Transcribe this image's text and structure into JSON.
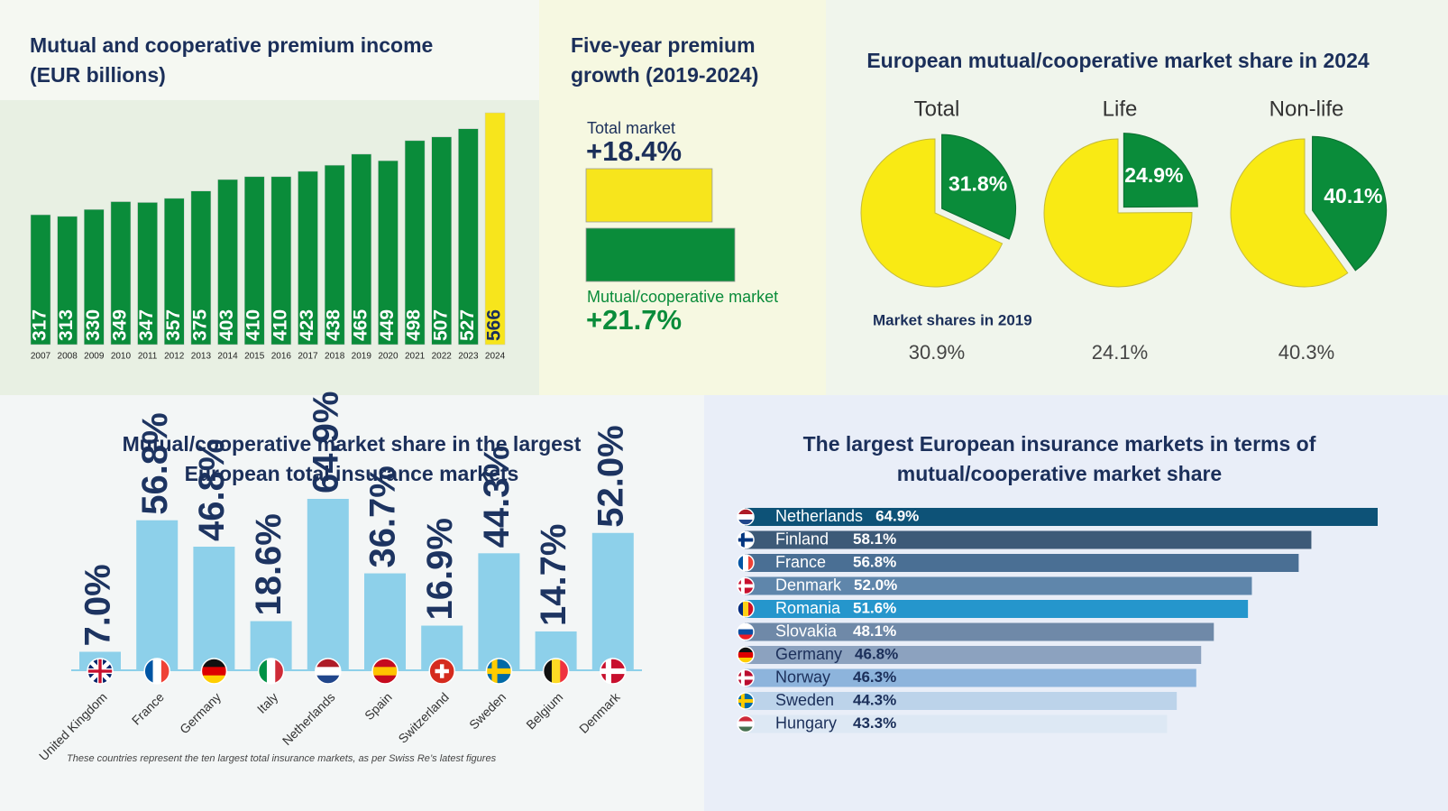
{
  "chart_data": [
    {
      "type": "bar",
      "title": "Mutual and cooperative premium income (EUR billions)",
      "categories": [
        "2007",
        "2008",
        "2009",
        "2010",
        "2011",
        "2012",
        "2013",
        "2014",
        "2015",
        "2016",
        "2017",
        "2018",
        "2019",
        "2020",
        "2021",
        "2022",
        "2023",
        "2024"
      ],
      "values": [
        317,
        313,
        330,
        349,
        347,
        357,
        375,
        403,
        410,
        410,
        423,
        438,
        465,
        449,
        498,
        507,
        527,
        566
      ],
      "colors": [
        "#0a8c3a",
        "#0a8c3a",
        "#0a8c3a",
        "#0a8c3a",
        "#0a8c3a",
        "#0a8c3a",
        "#0a8c3a",
        "#0a8c3a",
        "#0a8c3a",
        "#0a8c3a",
        "#0a8c3a",
        "#0a8c3a",
        "#0a8c3a",
        "#0a8c3a",
        "#0a8c3a",
        "#0a8c3a",
        "#0a8c3a",
        "#f7e51c"
      ]
    },
    {
      "type": "hbar",
      "title": "Five-year premium growth (2019-2024)",
      "categories": [
        "Total market",
        "Mutual/cooperative market"
      ],
      "values": [
        18.4,
        21.7
      ],
      "value_labels": [
        "+18.4%",
        "+21.7%"
      ],
      "colors": [
        "#f7e51c",
        "#0a8c3a"
      ]
    },
    {
      "type": "pie",
      "title": "European mutual/cooperative market share in 2024",
      "categories": [
        "Total",
        "Life",
        "Non-life"
      ],
      "values": [
        31.8,
        24.9,
        40.1
      ],
      "value_labels": [
        "31.8%",
        "24.9%",
        "40.1%"
      ],
      "color": "#0a8c3a",
      "rest_color": "#f9ea14",
      "subtitle": "Market shares in 2019",
      "values_2019": [
        30.9,
        24.1,
        40.3
      ],
      "value_labels_2019": [
        "30.9%",
        "24.1%",
        "40.3%"
      ]
    },
    {
      "type": "bar",
      "title": "Mutual/cooperative market share in the largest European total insurance markets",
      "categories": [
        "United Kingdom",
        "France",
        "Germany",
        "Italy",
        "Netherlands",
        "Spain",
        "Switzerland",
        "Sweden",
        "Belgium",
        "Denmark"
      ],
      "values": [
        7.0,
        56.8,
        46.8,
        18.6,
        64.9,
        36.7,
        16.9,
        44.3,
        14.7,
        52.0
      ],
      "value_labels": [
        "7.0%",
        "56.8%",
        "46.8%",
        "18.6%",
        "64.9%",
        "36.7%",
        "16.9%",
        "44.3%",
        "14.7%",
        "52.0%"
      ],
      "color": "#8dd0ea",
      "note": "These countries represent the ten largest total insurance markets, as per Swiss Re’s latest figures"
    },
    {
      "type": "hbar",
      "title": "The largest European insurance markets in terms of mutual/cooperative market share",
      "categories": [
        "Netherlands",
        "Finland",
        "France",
        "Denmark",
        "Romania",
        "Slovakia",
        "Germany",
        "Norway",
        "Sweden",
        "Hungary"
      ],
      "values": [
        64.9,
        58.1,
        56.8,
        52.0,
        51.6,
        48.1,
        46.8,
        46.3,
        44.3,
        43.3
      ],
      "value_labels": [
        "64.9%",
        "58.1%",
        "56.8%",
        "52.0%",
        "51.6%",
        "48.1%",
        "46.8%",
        "46.3%",
        "44.3%",
        "43.3%"
      ],
      "colors": [
        "#0d5277",
        "#3d5a78",
        "#4a6f94",
        "#5f86ab",
        "#2596cc",
        "#6f89a8",
        "#8ca2bf",
        "#8db4dc",
        "#bcd3ea",
        "#dde8f4"
      ]
    }
  ]
}
